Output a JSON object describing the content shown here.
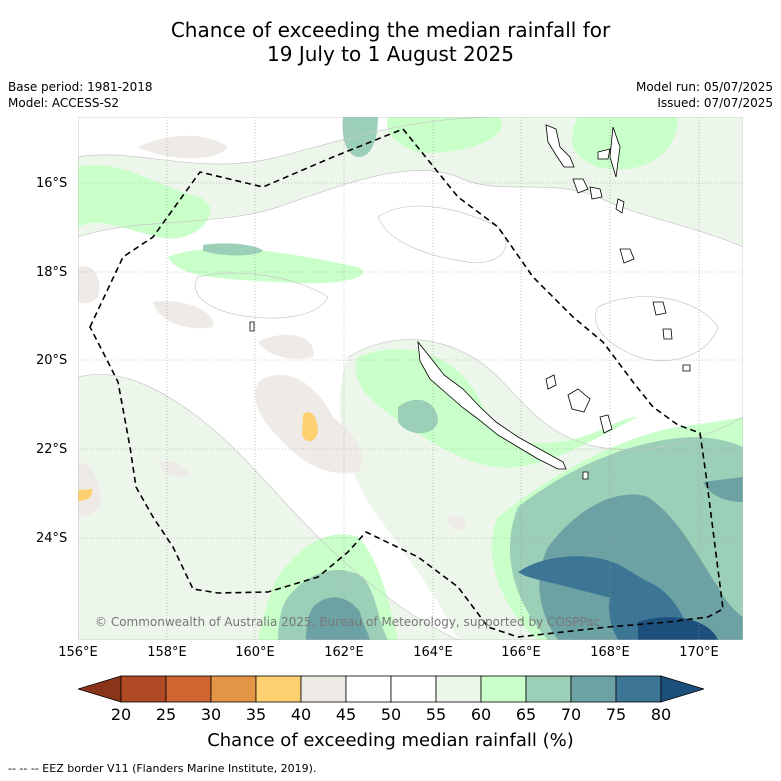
{
  "title": {
    "line1": "Chance of exceeding the median rainfall for",
    "line2": "19 July to 1 August 2025"
  },
  "meta_left": {
    "base_period": "Base period: 1981-2018",
    "model": "Model: ACCESS-S2"
  },
  "meta_right": {
    "model_run": "Model run: 05/07/2025",
    "issued": "Issued: 07/07/2025"
  },
  "map": {
    "lat_labels": [
      "16°S",
      "18°S",
      "20°S",
      "22°S",
      "24°S"
    ],
    "lon_labels": [
      "156°E",
      "158°E",
      "160°E",
      "162°E",
      "164°E",
      "166°E",
      "168°E",
      "170°E"
    ],
    "copyright": "© Commonwealth of Australia 2025, Bureau of Meteorology, supported by COSPPac"
  },
  "colorbar": {
    "ticks": [
      "20",
      "25",
      "30",
      "35",
      "40",
      "45",
      "50",
      "55",
      "60",
      "65",
      "70",
      "75",
      "80"
    ],
    "colors": [
      "#b04a24",
      "#cf6632",
      "#e49446",
      "#ffd070",
      "#eeebe7",
      "#ffffff",
      "#ffffff",
      "#ecf6ea",
      "#c9ffc8",
      "#9ccfb8",
      "#6ca2a4",
      "#3d7694"
    ],
    "low_extend_color": "#8a3519",
    "high_extend_color": "#1d4f7d",
    "label": "Chance of exceeding median rainfall (%)"
  },
  "footer": "--  --  -- EEZ border V11 (Flanders Marine Institute, 2019)."
}
